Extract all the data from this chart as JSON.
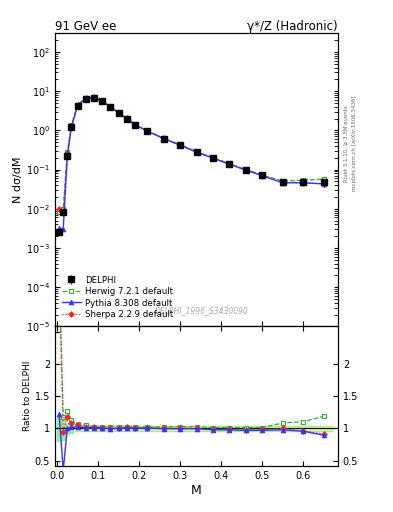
{
  "title_left": "91 GeV ee",
  "title_right": "γ*/Z (Hadronic)",
  "ylabel_main": "N dσ/dM",
  "ylabel_ratio": "Ratio to DELPHI",
  "xlabel": "M",
  "right_label_top": "Rivet 3.1.10, ≥ 3.5M events",
  "right_label_bottom": "mcplots.cern.ch [arXiv:1306.3436]",
  "watermark": "DELPHI_1996_S3430090",
  "ylim_main": [
    1e-05,
    300
  ],
  "ylim_ratio": [
    0.42,
    2.58
  ],
  "xlim": [
    -0.005,
    0.685
  ],
  "delphi_x": [
    0.005,
    0.015,
    0.025,
    0.035,
    0.05,
    0.07,
    0.09,
    0.11,
    0.13,
    0.15,
    0.17,
    0.19,
    0.22,
    0.26,
    0.3,
    0.34,
    0.38,
    0.42,
    0.46,
    0.5,
    0.55,
    0.6,
    0.65
  ],
  "delphi_y": [
    0.0026,
    0.0085,
    0.22,
    1.2,
    4.2,
    6.5,
    6.8,
    5.5,
    4.0,
    2.8,
    2.0,
    1.4,
    0.95,
    0.62,
    0.42,
    0.28,
    0.2,
    0.14,
    0.1,
    0.072,
    0.047,
    0.048,
    0.048
  ],
  "delphi_yerr": [
    0.0005,
    0.0015,
    0.02,
    0.08,
    0.15,
    0.25,
    0.25,
    0.18,
    0.13,
    0.09,
    0.07,
    0.05,
    0.035,
    0.022,
    0.015,
    0.01,
    0.008,
    0.005,
    0.004,
    0.003,
    0.002,
    0.002,
    0.002
  ],
  "herwig_x": [
    0.005,
    0.015,
    0.025,
    0.035,
    0.05,
    0.07,
    0.09,
    0.11,
    0.13,
    0.15,
    0.17,
    0.19,
    0.22,
    0.26,
    0.3,
    0.34,
    0.38,
    0.42,
    0.46,
    0.5,
    0.55,
    0.6,
    0.65
  ],
  "herwig_y": [
    0.0085,
    0.01,
    0.28,
    1.35,
    4.5,
    6.8,
    7.0,
    5.6,
    4.1,
    2.85,
    2.05,
    1.43,
    0.97,
    0.635,
    0.432,
    0.288,
    0.202,
    0.142,
    0.101,
    0.073,
    0.051,
    0.053,
    0.057
  ],
  "pythia_x": [
    0.005,
    0.015,
    0.025,
    0.035,
    0.05,
    0.07,
    0.09,
    0.11,
    0.13,
    0.15,
    0.17,
    0.19,
    0.22,
    0.26,
    0.3,
    0.34,
    0.38,
    0.42,
    0.46,
    0.5,
    0.55,
    0.6,
    0.65
  ],
  "pythia_y": [
    0.0032,
    0.003,
    0.22,
    1.22,
    4.3,
    6.55,
    6.88,
    5.52,
    3.98,
    2.8,
    2.01,
    1.4,
    0.955,
    0.618,
    0.418,
    0.279,
    0.196,
    0.137,
    0.097,
    0.07,
    0.046,
    0.046,
    0.043
  ],
  "sherpa_x": [
    0.005,
    0.015,
    0.025,
    0.035,
    0.05,
    0.07,
    0.09,
    0.11,
    0.13,
    0.15,
    0.17,
    0.19,
    0.22,
    0.26,
    0.3,
    0.34,
    0.38,
    0.42,
    0.46,
    0.5,
    0.55,
    0.6,
    0.65
  ],
  "sherpa_y": [
    0.01,
    0.008,
    0.26,
    1.3,
    4.4,
    6.65,
    6.95,
    5.58,
    4.03,
    2.83,
    2.03,
    1.41,
    0.962,
    0.622,
    0.422,
    0.281,
    0.197,
    0.139,
    0.098,
    0.071,
    0.047,
    0.046,
    0.044
  ],
  "delphi_color": "#000000",
  "herwig_color": "#33aa33",
  "pythia_color": "#3333ff",
  "sherpa_color": "#ff2222",
  "band_green": "#88ee88",
  "band_yellow": "#eeee99"
}
